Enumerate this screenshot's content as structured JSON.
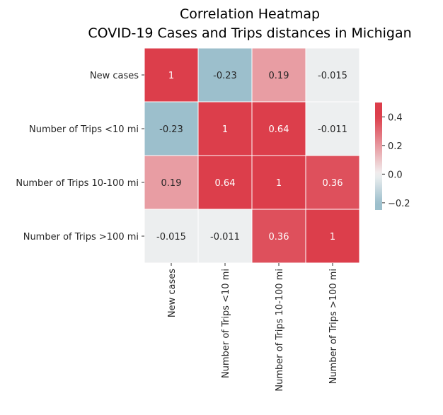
{
  "chart_data": {
    "type": "heatmap",
    "title": "Correlation Heatmap",
    "subtitle": "COVID-19 Cases and Trips distances in Michigan",
    "rows": [
      "New cases",
      "Number of Trips <10 mi",
      "Number of Trips 10-100 mi",
      "Number of Trips >100 mi"
    ],
    "columns": [
      "New cases",
      "Number of Trips <10 mi",
      "Number of Trips 10-100 mi",
      "Number of Trips >100 mi"
    ],
    "values": [
      [
        1,
        -0.23,
        0.19,
        -0.015
      ],
      [
        -0.23,
        1,
        0.64,
        -0.011
      ],
      [
        0.19,
        0.64,
        1,
        0.36
      ],
      [
        -0.015,
        -0.011,
        0.36,
        1
      ]
    ],
    "cell_labels": [
      [
        "1",
        "-0.23",
        "0.19",
        "-0.015"
      ],
      [
        "-0.23",
        "1",
        "0.64",
        "-0.011"
      ],
      [
        "0.19",
        "0.64",
        "1",
        "0.36"
      ],
      [
        "-0.015",
        "-0.011",
        "0.36",
        "1"
      ]
    ],
    "colorbar": {
      "vmin": -0.25,
      "vmax": 0.5,
      "ticks": [
        0.4,
        0.2,
        0.0,
        -0.2
      ],
      "tick_labels": [
        "0.4",
        "0.2",
        "0.0",
        "−0.2"
      ]
    },
    "colors": {
      "negative": "#9cbfcc",
      "center": "#f2f2f2",
      "positive": "#dc3e4b",
      "cell_border": "#ffffff",
      "text_dark": "#262626",
      "text_light": "#ffffff"
    },
    "legend": "right"
  }
}
